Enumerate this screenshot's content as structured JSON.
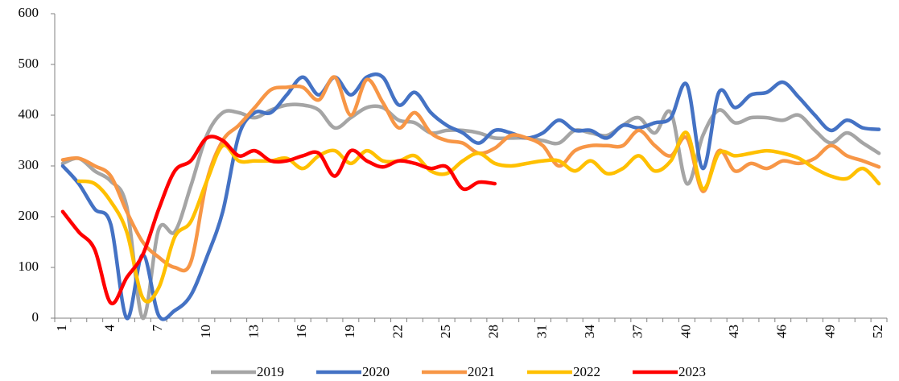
{
  "chart_data": {
    "type": "line",
    "categories": [
      "1",
      null,
      null,
      "4",
      null,
      null,
      "7",
      null,
      null,
      "10",
      null,
      null,
      "13",
      null,
      null,
      "16",
      null,
      null,
      "19",
      null,
      null,
      "22",
      null,
      null,
      "25",
      null,
      null,
      "28",
      null,
      null,
      "31",
      null,
      null,
      "34",
      null,
      null,
      "37",
      null,
      null,
      "40",
      null,
      null,
      "43",
      null,
      null,
      "46",
      null,
      null,
      "49",
      null,
      null,
      "52"
    ],
    "ylim": [
      0,
      600
    ],
    "yticks": [
      0,
      100,
      200,
      300,
      400,
      500,
      600
    ],
    "series": [
      {
        "name": "2019",
        "color": "#a5a5a5",
        "values": [
          305,
          315,
          290,
          270,
          220,
          0,
          175,
          170,
          260,
          360,
          405,
          405,
          395,
          410,
          420,
          420,
          410,
          375,
          395,
          415,
          415,
          390,
          385,
          365,
          370,
          370,
          365,
          355,
          355,
          355,
          350,
          345,
          370,
          365,
          360,
          380,
          395,
          365,
          405,
          265,
          360,
          410,
          385,
          395,
          395,
          390,
          400,
          370,
          345,
          365,
          345,
          325
        ]
      },
      {
        "name": "2020",
        "color": "#4472c4",
        "values": [
          300,
          265,
          215,
          185,
          0,
          125,
          5,
          15,
          45,
          120,
          210,
          360,
          405,
          405,
          440,
          475,
          440,
          475,
          440,
          475,
          475,
          420,
          445,
          405,
          380,
          365,
          345,
          370,
          365,
          355,
          365,
          390,
          370,
          370,
          355,
          380,
          375,
          385,
          395,
          460,
          295,
          445,
          415,
          440,
          445,
          465,
          435,
          400,
          370,
          390,
          375,
          372
        ]
      },
      {
        "name": "2021",
        "color": "#f79646",
        "values": [
          312,
          315,
          300,
          280,
          210,
          150,
          120,
          100,
          110,
          270,
          350,
          380,
          415,
          450,
          455,
          455,
          430,
          475,
          400,
          470,
          425,
          375,
          405,
          365,
          350,
          345,
          325,
          335,
          360,
          355,
          340,
          300,
          330,
          340,
          340,
          340,
          370,
          340,
          320,
          355,
          250,
          330,
          290,
          305,
          295,
          310,
          305,
          315,
          340,
          320,
          310,
          298
        ]
      },
      {
        "name": "2022",
        "color": "#ffc000",
        "values": [
          null,
          270,
          265,
          230,
          170,
          40,
          60,
          160,
          190,
          270,
          340,
          310,
          310,
          310,
          315,
          295,
          320,
          330,
          305,
          330,
          310,
          310,
          320,
          290,
          285,
          310,
          325,
          305,
          300,
          305,
          310,
          310,
          290,
          310,
          285,
          295,
          320,
          290,
          310,
          365,
          255,
          325,
          320,
          325,
          330,
          325,
          315,
          295,
          280,
          275,
          295,
          265
        ]
      },
      {
        "name": "2023",
        "color": "#ff0000",
        "values": [
          210,
          170,
          135,
          30,
          80,
          125,
          215,
          290,
          310,
          355,
          350,
          320,
          330,
          310,
          310,
          320,
          325,
          280,
          330,
          310,
          298,
          310,
          305,
          295,
          298,
          255,
          268,
          265,
          null,
          null,
          null,
          null,
          null,
          null,
          null,
          null,
          null,
          null,
          null,
          null,
          null,
          null,
          null,
          null,
          null,
          null,
          null,
          null,
          null,
          null,
          null,
          null
        ]
      }
    ]
  }
}
